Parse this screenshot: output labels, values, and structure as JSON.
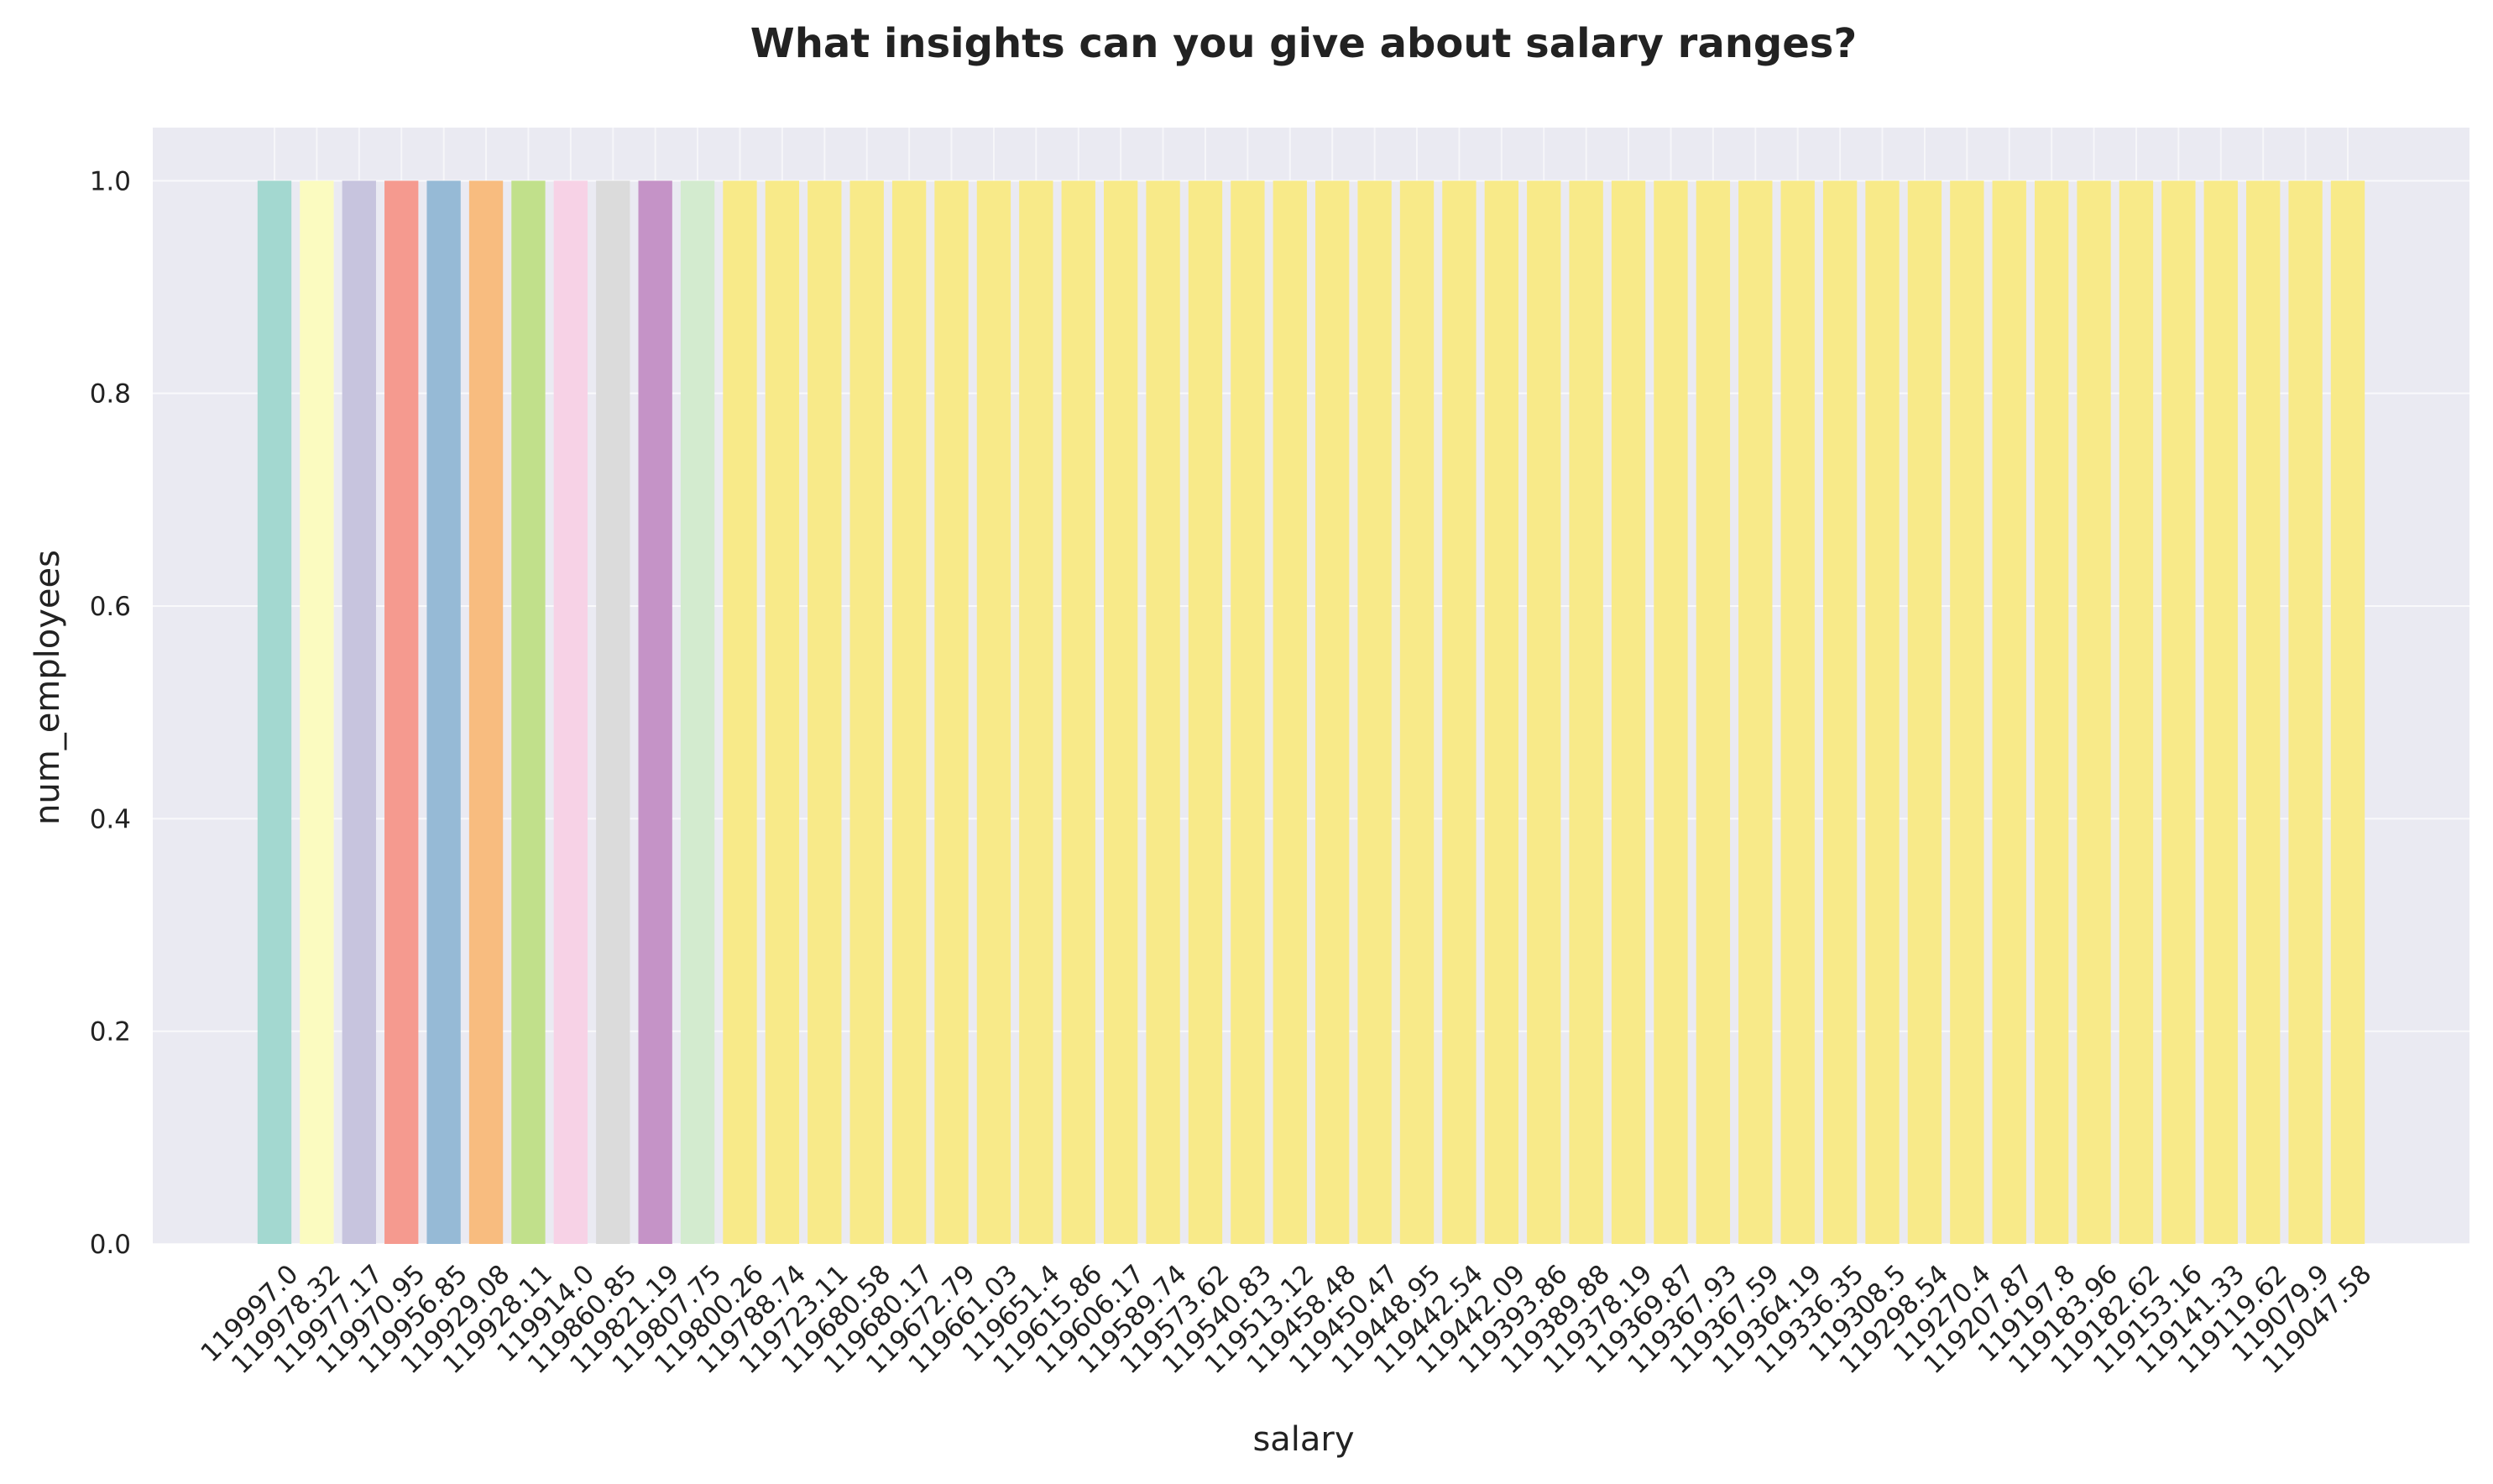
{
  "chart_data": {
    "type": "bar",
    "title": "What insights can you give about salary ranges?",
    "xlabel": "salary",
    "ylabel": "num_employees",
    "ylim": [
      0,
      1.05
    ],
    "yticks": [
      "0.0",
      "0.2",
      "0.4",
      "0.6",
      "0.8",
      "1.0"
    ],
    "grid": true,
    "legend": "none",
    "categories": [
      "119997.0",
      "119978.32",
      "119977.17",
      "119970.95",
      "119956.85",
      "119929.08",
      "119928.11",
      "119914.0",
      "119860.85",
      "119821.19",
      "119807.75",
      "119800.26",
      "119788.74",
      "119723.11",
      "119680.58",
      "119680.17",
      "119672.79",
      "119661.03",
      "119651.4",
      "119615.86",
      "119606.17",
      "119589.74",
      "119573.62",
      "119540.83",
      "119513.12",
      "119458.48",
      "119450.47",
      "119448.95",
      "119442.54",
      "119442.09",
      "119393.86",
      "119389.88",
      "119378.19",
      "119369.87",
      "119367.93",
      "119367.59",
      "119364.19",
      "119336.35",
      "119308.5",
      "119298.54",
      "119270.4",
      "119207.87",
      "119197.8",
      "119183.96",
      "119182.62",
      "119153.16",
      "119141.33",
      "119119.62",
      "119079.9",
      "119047.58"
    ],
    "values": [
      1,
      1,
      1,
      1,
      1,
      1,
      1,
      1,
      1,
      1,
      1,
      1,
      1,
      1,
      1,
      1,
      1,
      1,
      1,
      1,
      1,
      1,
      1,
      1,
      1,
      1,
      1,
      1,
      1,
      1,
      1,
      1,
      1,
      1,
      1,
      1,
      1,
      1,
      1,
      1,
      1,
      1,
      1,
      1,
      1,
      1,
      1,
      1,
      1,
      1
    ],
    "colors": [
      "#a3d8d0",
      "#fbfbc0",
      "#c7c4de",
      "#f59a8f",
      "#96bad6",
      "#f8bc7f",
      "#c1e08b",
      "#f7d2e6",
      "#dbdbdb",
      "#c593c7",
      "#d3ebcf",
      "#f8ea89"
    ],
    "plot_background": "#eaeaf2",
    "grid_color": "#ffffff"
  }
}
